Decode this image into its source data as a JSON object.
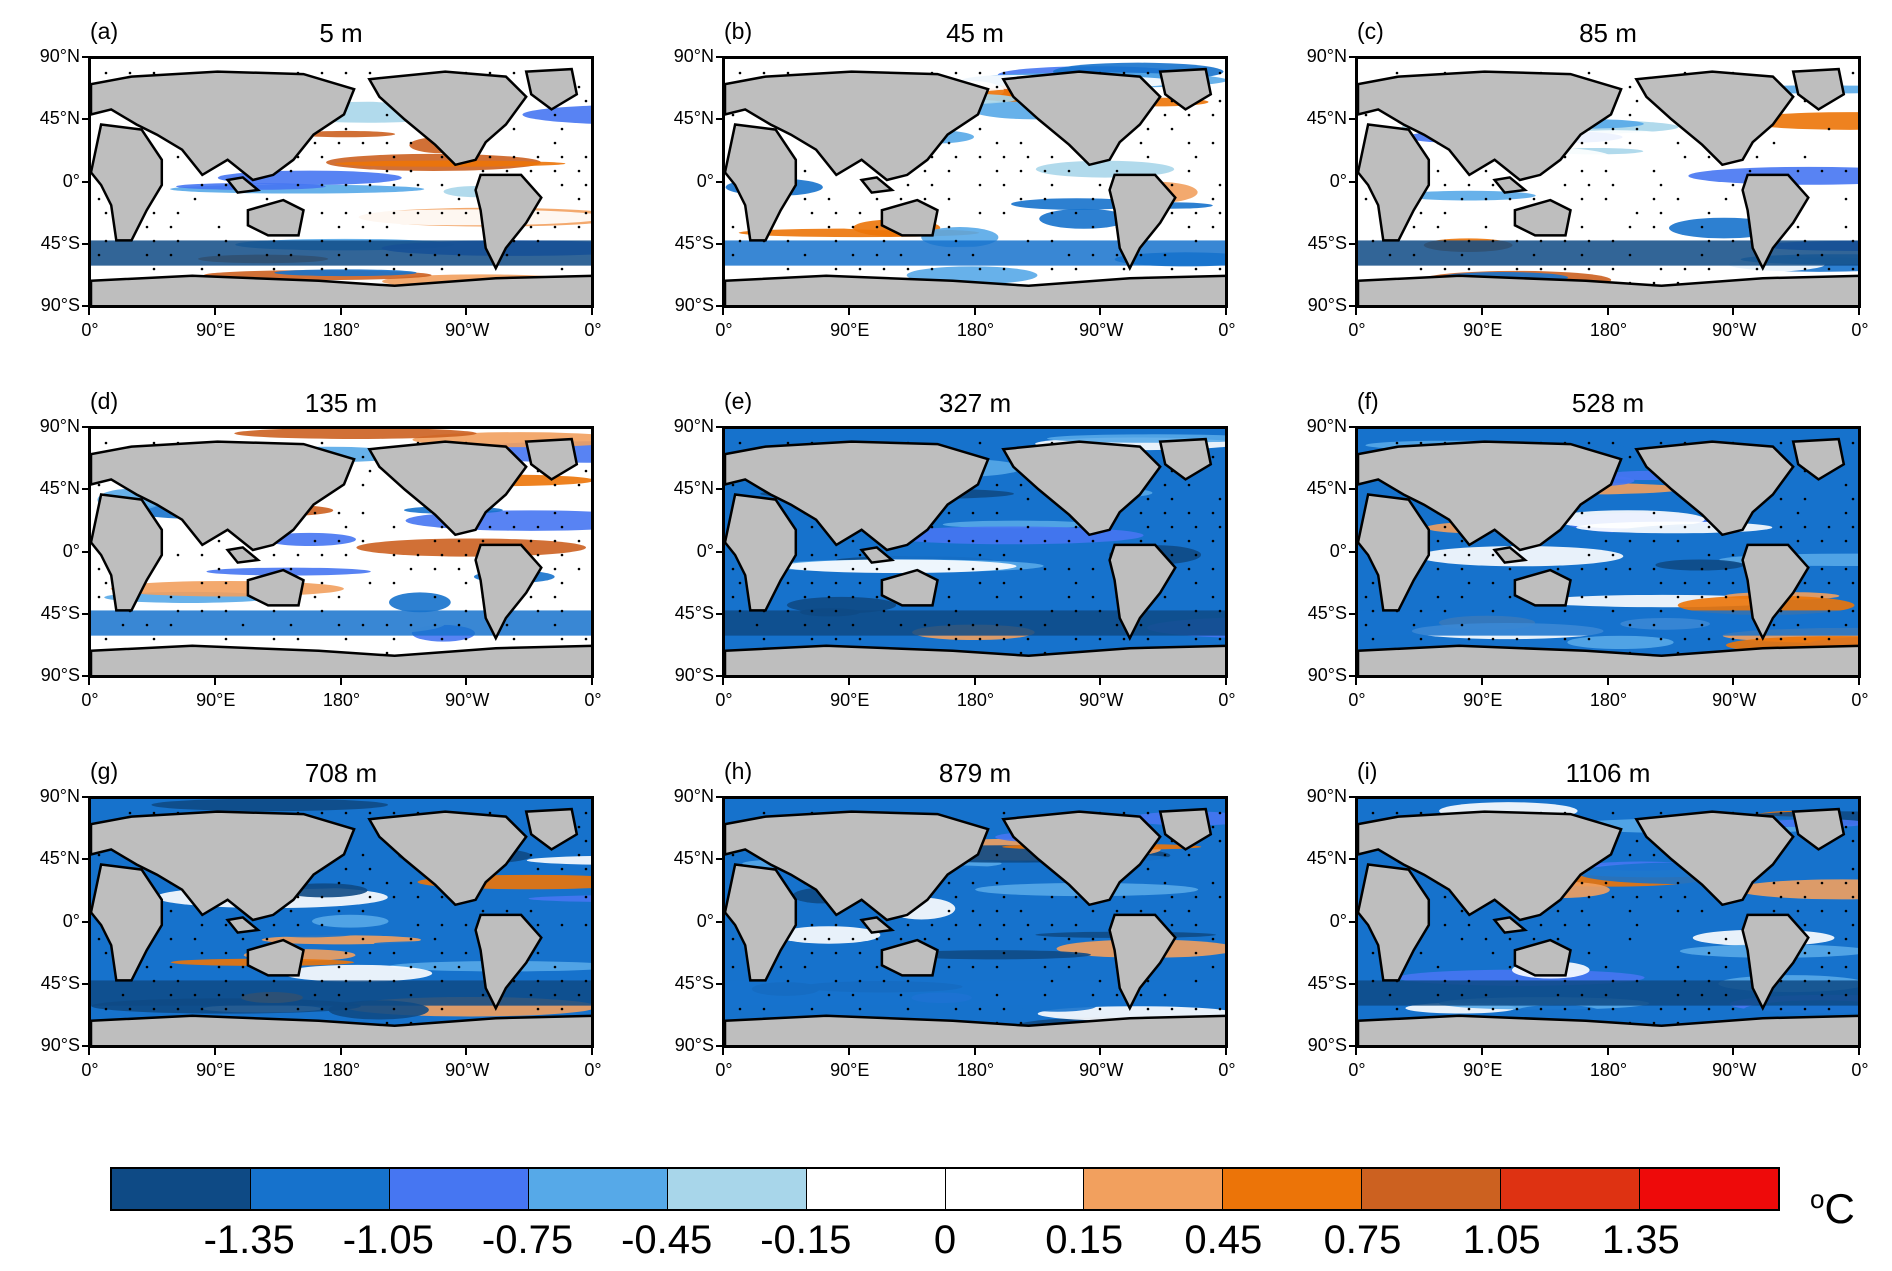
{
  "panels": [
    {
      "label": "(a)",
      "title": "5 m",
      "variant": 0
    },
    {
      "label": "(b)",
      "title": "45 m",
      "variant": 1
    },
    {
      "label": "(c)",
      "title": "85 m",
      "variant": 2
    },
    {
      "label": "(d)",
      "title": "135 m",
      "variant": 3
    },
    {
      "label": "(e)",
      "title": "327 m",
      "variant": 4
    },
    {
      "label": "(f)",
      "title": "528 m",
      "variant": 5
    },
    {
      "label": "(g)",
      "title": "708 m",
      "variant": 6
    },
    {
      "label": "(h)",
      "title": "879 m",
      "variant": 7
    },
    {
      "label": "(i)",
      "title": "1106 m",
      "variant": 8
    }
  ],
  "axes": {
    "y_ticks": [
      "90°N",
      "45°N",
      "0°",
      "45°S",
      "90°S"
    ],
    "x_ticks": [
      "0°",
      "90°E",
      "180°",
      "90°W",
      "0°"
    ]
  },
  "colorbar": {
    "colors": [
      "#0e4a85",
      "#1672cc",
      "#4676f2",
      "#56a9e8",
      "#a8d6ea",
      "#ffffff",
      "#ffffff",
      "#f2a05e",
      "#ec7408",
      "#cc6120",
      "#de3212",
      "#ee0a0a"
    ],
    "labels": [
      "-1.35",
      "-1.05",
      "-0.75",
      "-0.45",
      "-0.15",
      "0",
      "0.15",
      "0.45",
      "0.75",
      "1.05",
      "1.35"
    ],
    "unit": "C",
    "unit_sup": "o"
  },
  "land_color": "#bebebe"
}
